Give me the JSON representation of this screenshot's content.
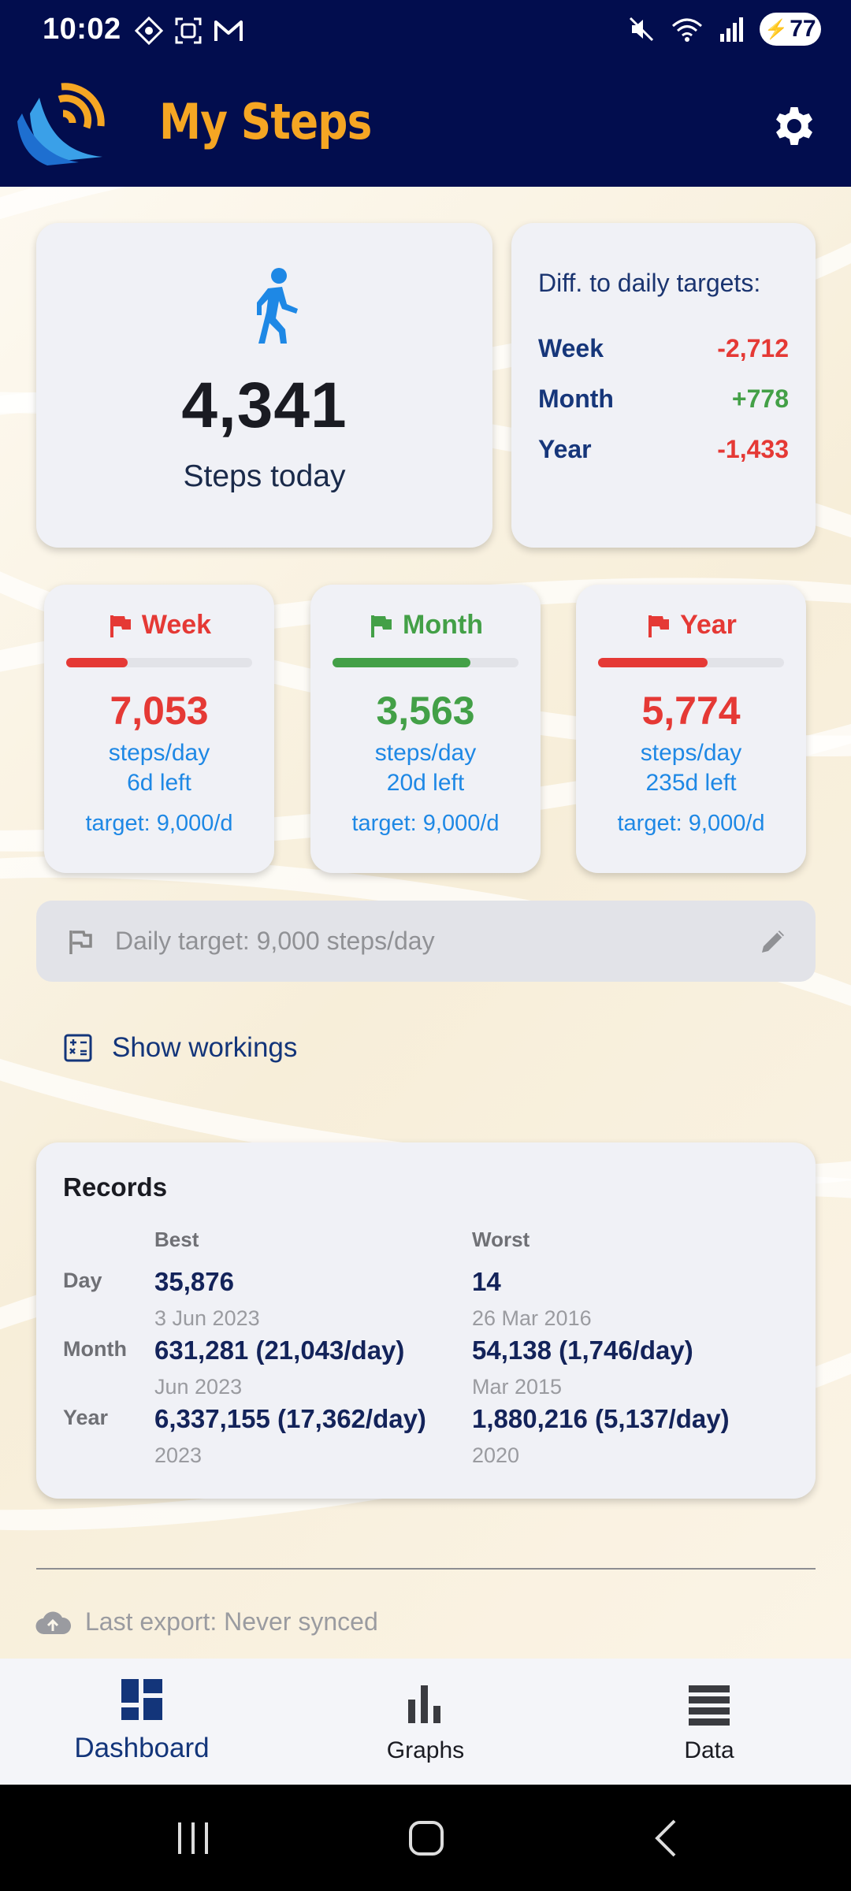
{
  "status": {
    "time": "10:02",
    "battery": "77"
  },
  "app": {
    "title": "My Steps"
  },
  "today": {
    "steps": "4,341",
    "label": "Steps today"
  },
  "diff": {
    "title": "Diff. to daily targets:",
    "rows": [
      {
        "label": "Week",
        "value": "-2,712",
        "status": "negative"
      },
      {
        "label": "Month",
        "value": "+778",
        "status": "positive"
      },
      {
        "label": "Year",
        "value": "-1,433",
        "status": "negative"
      }
    ]
  },
  "periods": [
    {
      "label": "Week",
      "value": "7,053",
      "unit": "steps/day",
      "left": "6d left",
      "target": "target: 9,000/d",
      "color": "#e53935",
      "progress": 0.33
    },
    {
      "label": "Month",
      "value": "3,563",
      "unit": "steps/day",
      "left": "20d left",
      "target": "target: 9,000/d",
      "color": "#43a047",
      "progress": 0.74
    },
    {
      "label": "Year",
      "value": "5,774",
      "unit": "steps/day",
      "left": "235d left",
      "target": "target: 9,000/d",
      "color": "#e53935",
      "progress": 0.59
    }
  ],
  "daily_target": {
    "text": "Daily target: 9,000 steps/day"
  },
  "workings": {
    "label": "Show workings"
  },
  "records": {
    "title": "Records",
    "best_label": "Best",
    "worst_label": "Worst",
    "rows": [
      {
        "label": "Day",
        "best": "35,876",
        "best_date": "3 Jun 2023",
        "worst": "14",
        "worst_date": "26 Mar 2016"
      },
      {
        "label": "Month",
        "best": "631,281 (21,043/day)",
        "best_date": "Jun 2023",
        "worst": "54,138 (1,746/day)",
        "worst_date": "Mar 2015"
      },
      {
        "label": "Year",
        "best": "6,337,155 (17,362/day)",
        "best_date": "2023",
        "worst": "1,880,216 (5,137/day)",
        "worst_date": "2020"
      }
    ]
  },
  "export": {
    "text": "Last export: Never synced"
  },
  "nav": {
    "dashboard": "Dashboard",
    "graphs": "Graphs",
    "data": "Data"
  },
  "colors": {
    "header": "#020d4e",
    "accent": "#f5a623",
    "negative": "#e53935",
    "positive": "#43a047",
    "link": "#1e88e5"
  }
}
